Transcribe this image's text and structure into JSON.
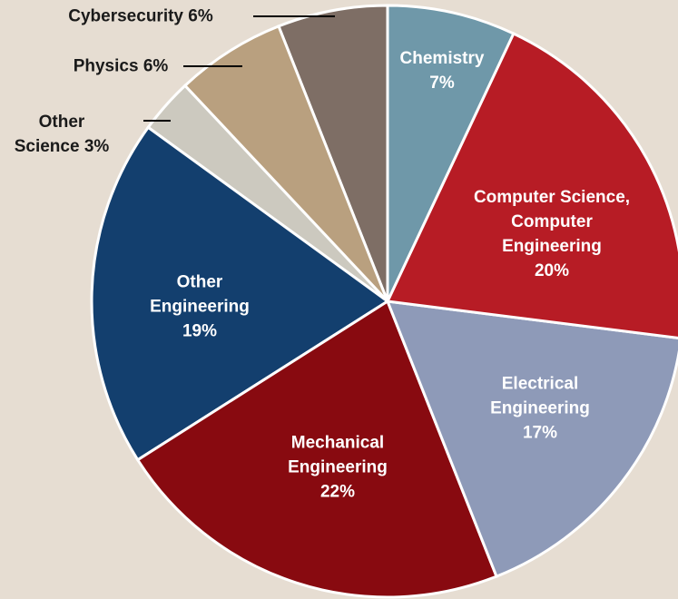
{
  "chart_data": {
    "type": "pie",
    "categories": [
      "Chemistry",
      "Computer Science, Computer Engineering",
      "Electrical Engineering",
      "Mechanical Engineering",
      "Other Engineering",
      "Other Science",
      "Physics",
      "Cybersecurity"
    ],
    "values": [
      7,
      20,
      17,
      22,
      19,
      3,
      6,
      6
    ],
    "value_labels": [
      "7%",
      "20%",
      "17%",
      "22%",
      "19%",
      "3%",
      "6%",
      "6%"
    ],
    "colors": [
      "#6f98a9",
      "#b71c25",
      "#8e9ab8",
      "#880a10",
      "#133f6e",
      "#ccc9bf",
      "#b9a07f",
      "#7e6e65"
    ]
  }
}
